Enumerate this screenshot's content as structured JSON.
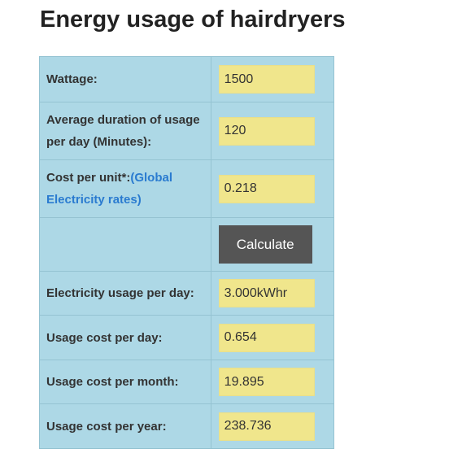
{
  "page": {
    "title": "Energy usage of hairdryers"
  },
  "form": {
    "wattage": {
      "label": "Wattage:",
      "value": "1500"
    },
    "duration": {
      "label": "Average duration of usage per day (Minutes):",
      "value": "120"
    },
    "cost_per_unit": {
      "label": "Cost per unit*:",
      "link_text": "(Global Electricity rates)",
      "value": "0.218"
    },
    "calculate_label": "Calculate"
  },
  "results": {
    "usage_per_day": {
      "label": "Electricity usage per day:",
      "value": "3.000kWhr"
    },
    "cost_per_day": {
      "label": "Usage cost per day:",
      "value": "0.654"
    },
    "cost_per_month": {
      "label": "Usage cost per month:",
      "value": "19.895"
    },
    "cost_per_year": {
      "label": "Usage cost per year:",
      "value": "238.736"
    }
  },
  "colors": {
    "table_background": "#add8e6",
    "field_background": "#f0e68c",
    "button_background": "#555555",
    "link": "#2a7bd0"
  }
}
